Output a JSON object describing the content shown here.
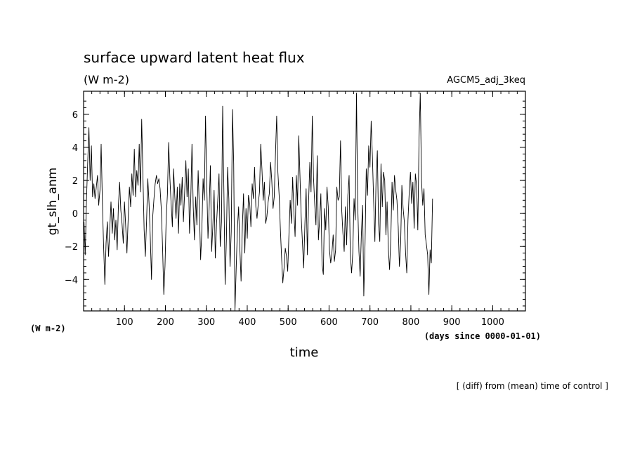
{
  "chart_data": {
    "type": "line",
    "title": "surface upward latent heat flux",
    "units": "(W m-2)",
    "dataset": "AGCM5_adj_3keq",
    "ylabel": "gt_slh_anm",
    "yunits": "(W m-2)",
    "xlabel": "time",
    "xunits": "(days since 0000-01-01)",
    "note": "[ (diff) from (mean) time of control ]",
    "xlim": [
      0,
      1080
    ],
    "ylim": [
      -5.9,
      7.4
    ],
    "x_ticks": [
      100,
      200,
      300,
      400,
      500,
      600,
      700,
      800,
      900,
      1000
    ],
    "y_ticks": [
      -4,
      -2,
      0,
      2,
      4,
      6
    ],
    "grid": false,
    "series": [
      {
        "x_start": 1,
        "x_step": 3,
        "values": [
          -0.5,
          -2.5,
          0.8,
          3.0,
          5.2,
          2.0,
          4.1,
          1.0,
          1.8,
          0.9,
          1.6,
          2.3,
          0.5,
          1.4,
          4.2,
          0.6,
          -2.0,
          -4.3,
          -1.8,
          -0.5,
          -2.6,
          -0.9,
          0.7,
          -1.2,
          0.3,
          -1.6,
          -0.4,
          -2.2,
          0.4,
          1.9,
          0.2,
          -0.6,
          -1.8,
          0.7,
          -0.8,
          -2.4,
          -0.3,
          1.6,
          0.4,
          2.4,
          1.1,
          3.9,
          1.0,
          2.6,
          1.7,
          4.2,
          1.3,
          5.7,
          2.4,
          -1.0,
          -2.6,
          -0.4,
          2.1,
          0.6,
          -1.4,
          -4.0,
          -0.2,
          0.9,
          1.8,
          2.3,
          1.8,
          2.1,
          1.5,
          0.2,
          -2.0,
          -4.9,
          -3.2,
          -0.3,
          1.2,
          4.3,
          2.1,
          0.6,
          -0.8,
          2.7,
          1.0,
          -0.3,
          1.6,
          -1.2,
          1.8,
          0.5,
          2.2,
          -0.5,
          1.3,
          3.2,
          1.0,
          2.7,
          -1.2,
          0.9,
          4.2,
          0.4,
          -1.6,
          1.0,
          -0.7,
          2.6,
          0.3,
          -2.8,
          -1.1,
          2.1,
          0.8,
          5.9,
          1.8,
          -1.5,
          0.4,
          2.9,
          -2.3,
          -0.8,
          1.4,
          -2.7,
          -0.6,
          0.8,
          2.4,
          -2.0,
          -0.5,
          6.5,
          1.2,
          -4.3,
          -1.6,
          2.8,
          0.9,
          -3.2,
          -1.1,
          6.3,
          3.0,
          -5.9,
          -3.4,
          -0.9,
          0.4,
          -2.2,
          -4.1,
          -0.8,
          1.2,
          -2.4,
          0.3,
          -1.5,
          1.1,
          0.6,
          -0.8,
          1.8,
          0.9,
          2.8,
          0.4,
          -0.3,
          0.6,
          1.3,
          4.2,
          2.7,
          0.8,
          1.9,
          -0.6,
          -0.2,
          0.7,
          1.2,
          3.1,
          2.0,
          0.3,
          1.0,
          3.5,
          5.9,
          2.5,
          1.1,
          -0.9,
          -2.7,
          -4.2,
          -3.3,
          -2.1,
          -2.6,
          -3.5,
          -1.2,
          0.8,
          -0.6,
          2.2,
          0.1,
          -1.4,
          2.3,
          0.5,
          4.7,
          2.2,
          -0.2,
          -1.8,
          -3.3,
          -0.6,
          1.5,
          -2.5,
          0.7,
          3.1,
          1.3,
          5.9,
          2.2,
          0.5,
          -0.7,
          3.5,
          -1.6,
          -0.4,
          1.2,
          -3.1,
          -3.7,
          0.3,
          -1.0,
          1.6,
          0.4,
          -2.2,
          -3.0,
          -2.4,
          -1.3,
          -2.9,
          -2.2,
          1.6,
          0.8,
          1.0,
          4.4,
          0.2,
          -1.2,
          -2.3,
          0.4,
          -1.9,
          1.1,
          2.3,
          -2.5,
          -3.6,
          -2.4,
          0.9,
          -0.4,
          7.3,
          0.6,
          -2.3,
          -3.8,
          -1.2,
          0.5,
          -5.0,
          -1.8,
          2.7,
          1.1,
          4.1,
          2.8,
          5.6,
          3.4,
          0.8,
          -1.7,
          2.1,
          3.8,
          -0.6,
          -1.7,
          3.0,
          0.4,
          2.5,
          2.0,
          -1.3,
          0.7,
          -2.2,
          -3.4,
          -1.5,
          1.9,
          0.2,
          2.3,
          1.4,
          0.8,
          -0.8,
          -3.2,
          -1.8,
          1.7,
          0.3,
          -0.5,
          -2.4,
          -3.6,
          -0.4,
          1.3,
          2.5,
          0.6,
          1.9,
          -0.9,
          2.4,
          1.7,
          -1.0,
          4.6,
          7.3,
          2.0,
          0.5,
          1.5,
          -1.3,
          -1.9,
          -2.5,
          -4.9,
          -2.2,
          -3.0,
          0.9
        ]
      }
    ]
  }
}
